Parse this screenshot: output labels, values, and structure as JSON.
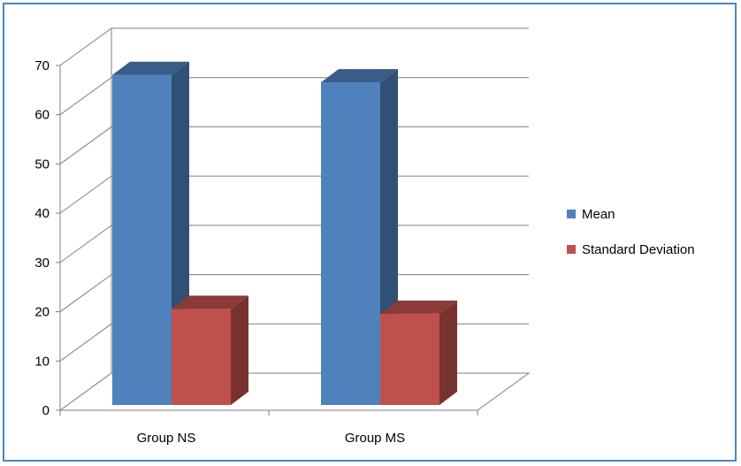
{
  "chart_data": {
    "type": "bar",
    "style": "3d-clustered-column",
    "title": "",
    "xlabel": "",
    "ylabel": "",
    "categories": [
      "Group NS",
      "Group MS"
    ],
    "series": [
      {
        "name": "Mean",
        "values": [
          67,
          65.5
        ],
        "color": "#4f81bd"
      },
      {
        "name": "Standard Deviation",
        "values": [
          19.5,
          18.5
        ],
        "color": "#c0504d"
      }
    ],
    "ylim": [
      0,
      70
    ],
    "yticks": [
      "0",
      "10",
      "20",
      "30",
      "40",
      "50",
      "60",
      "70"
    ],
    "grid": true,
    "legend": "right"
  }
}
